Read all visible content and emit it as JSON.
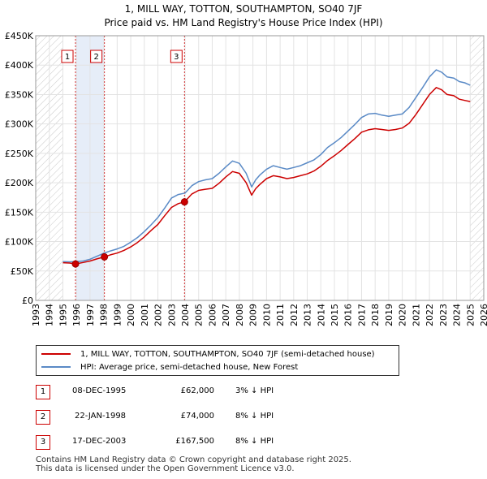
{
  "title_line1": "1, MILL WAY, TOTTON, SOUTHAMPTON, SO40 7JF",
  "title_line2": "Price paid vs. HM Land Registry's House Price Index (HPI)",
  "chart_data": {
    "type": "line",
    "xlabel": "",
    "ylabel": "",
    "xlim": [
      1993,
      2026
    ],
    "ylim": [
      0,
      450000
    ],
    "x_ticks": [
      1993,
      1994,
      1995,
      1996,
      1997,
      1998,
      1999,
      2000,
      2001,
      2002,
      2003,
      2004,
      2005,
      2006,
      2007,
      2008,
      2009,
      2010,
      2011,
      2012,
      2013,
      2014,
      2015,
      2016,
      2017,
      2018,
      2019,
      2020,
      2021,
      2022,
      2023,
      2024,
      2025,
      2026
    ],
    "y_ticks": [
      {
        "value": 0,
        "label": "£0"
      },
      {
        "value": 50000,
        "label": "£50K"
      },
      {
        "value": 100000,
        "label": "£100K"
      },
      {
        "value": 150000,
        "label": "£150K"
      },
      {
        "value": 200000,
        "label": "£200K"
      },
      {
        "value": 250000,
        "label": "£250K"
      },
      {
        "value": 300000,
        "label": "£300K"
      },
      {
        "value": 350000,
        "label": "£350K"
      },
      {
        "value": 400000,
        "label": "£400K"
      },
      {
        "value": 450000,
        "label": "£450K"
      }
    ],
    "grid": true,
    "hatched_ranges": [
      [
        1993,
        1995.0
      ],
      [
        2025.0,
        2026
      ]
    ],
    "highlight_ranges": [
      [
        1995.93,
        1998.06
      ]
    ],
    "series": [
      {
        "name": "1, MILL WAY, TOTTON, SOUTHAMPTON, SO40 7JF (semi-detached house)",
        "color": "#cc0000",
        "x": [
          1995.0,
          1995.5,
          1995.93,
          1996.5,
          1997.0,
          1997.5,
          1998.06,
          1998.5,
          1999.0,
          1999.5,
          2000.0,
          2000.5,
          2001.0,
          2001.5,
          2002.0,
          2002.5,
          2003.0,
          2003.5,
          2003.96,
          2004.5,
          2005.0,
          2005.5,
          2006.0,
          2006.5,
          2007.0,
          2007.5,
          2008.0,
          2008.5,
          2008.9,
          2009.2,
          2009.5,
          2010.0,
          2010.5,
          2011.0,
          2011.5,
          2012.0,
          2012.5,
          2013.0,
          2013.5,
          2014.0,
          2014.5,
          2015.0,
          2015.5,
          2016.0,
          2016.5,
          2017.0,
          2017.5,
          2018.0,
          2018.5,
          2019.0,
          2019.5,
          2020.0,
          2020.5,
          2021.0,
          2021.5,
          2022.0,
          2022.5,
          2022.9,
          2023.3,
          2023.8,
          2024.2,
          2024.6,
          2025.0
        ],
        "values": [
          64000,
          63500,
          62000,
          64500,
          67000,
          70500,
          74000,
          77500,
          80500,
          85000,
          91000,
          98500,
          108000,
          119000,
          129000,
          144000,
          158000,
          164500,
          167500,
          181000,
          187000,
          189000,
          190500,
          199000,
          210000,
          219000,
          216000,
          200000,
          179000,
          190000,
          197000,
          207000,
          212000,
          210000,
          207000,
          209000,
          212000,
          215000,
          220000,
          228000,
          238000,
          246000,
          255000,
          265000,
          275000,
          286000,
          290000,
          292000,
          290500,
          289000,
          290500,
          293000,
          301000,
          316000,
          333000,
          350000,
          362000,
          358000,
          350000,
          348000,
          342000,
          340000,
          338000
        ]
      },
      {
        "name": "HPI: Average price, semi-detached house, New Forest",
        "color": "#5a8ac6",
        "x": [
          1995.0,
          1995.5,
          1996.0,
          1996.5,
          1997.0,
          1997.5,
          1998.0,
          1998.5,
          1999.0,
          1999.5,
          2000.0,
          2000.5,
          2001.0,
          2001.5,
          2002.0,
          2002.5,
          2003.0,
          2003.5,
          2004.0,
          2004.5,
          2005.0,
          2005.5,
          2006.0,
          2006.5,
          2007.0,
          2007.5,
          2008.0,
          2008.5,
          2008.9,
          2009.2,
          2009.5,
          2010.0,
          2010.5,
          2011.0,
          2011.5,
          2012.0,
          2012.5,
          2013.0,
          2013.5,
          2014.0,
          2014.5,
          2015.0,
          2015.5,
          2016.0,
          2016.5,
          2017.0,
          2017.5,
          2018.0,
          2018.5,
          2019.0,
          2019.5,
          2020.0,
          2020.5,
          2021.0,
          2021.5,
          2022.0,
          2022.5,
          2022.9,
          2023.3,
          2023.8,
          2024.2,
          2024.6,
          2025.0
        ],
        "values": [
          66000,
          65500,
          66000,
          67000,
          70000,
          75000,
          80000,
          84000,
          87500,
          92000,
          99000,
          107000,
          117000,
          128500,
          141000,
          157000,
          174000,
          180000,
          182500,
          195000,
          202000,
          205000,
          207000,
          216000,
          227000,
          237000,
          233000,
          216000,
          193000,
          205000,
          213000,
          223000,
          229000,
          226000,
          223000,
          226000,
          229000,
          234000,
          239000,
          248000,
          260000,
          268000,
          277000,
          288000,
          299000,
          311000,
          317000,
          318000,
          315000,
          313000,
          315000,
          317000,
          328000,
          345000,
          362000,
          380000,
          392000,
          388000,
          380000,
          378000,
          372000,
          370000,
          366000
        ]
      }
    ],
    "sale_markers": [
      {
        "label": "1",
        "x": 1995.93,
        "value": 62000
      },
      {
        "label": "2",
        "x": 1998.06,
        "value": 74000
      },
      {
        "label": "3",
        "x": 2003.96,
        "value": 167500
      }
    ]
  },
  "legend": {
    "property_label": "1, MILL WAY, TOTTON, SOUTHAMPTON, SO40 7JF (semi-detached house)",
    "hpi_label": "HPI: Average price, semi-detached house, New Forest"
  },
  "transactions": [
    {
      "num": "1",
      "date": "08-DEC-1995",
      "price": "£62,000",
      "delta": "3% ↓ HPI"
    },
    {
      "num": "2",
      "date": "22-JAN-1998",
      "price": "£74,000",
      "delta": "8% ↓ HPI"
    },
    {
      "num": "3",
      "date": "17-DEC-2003",
      "price": "£167,500",
      "delta": "8% ↓ HPI"
    }
  ],
  "footer": {
    "line1": "Contains HM Land Registry data © Crown copyright and database right 2025.",
    "line2": "This data is licensed under the Open Government Licence v3.0."
  }
}
